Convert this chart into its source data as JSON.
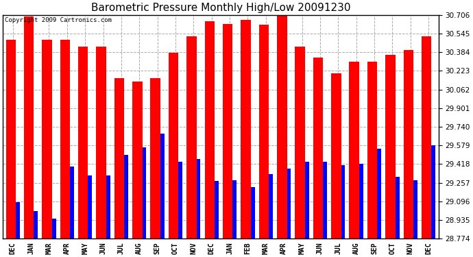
{
  "title": "Barometric Pressure Monthly High/Low 20091230",
  "copyright": "Copyright 2009 Cartronics.com",
  "months": [
    "DEC",
    "JAN",
    "MAR",
    "APR",
    "MAY",
    "JUN",
    "JUL",
    "AUG",
    "SEP",
    "OCT",
    "NOV",
    "DEC",
    "JAN",
    "FEB",
    "MAR",
    "APR",
    "MAY",
    "JUN",
    "JUL",
    "AUG",
    "SEP",
    "OCT",
    "NOV",
    "DEC"
  ],
  "highs": [
    30.49,
    30.69,
    30.49,
    30.49,
    30.43,
    30.43,
    30.16,
    30.13,
    30.16,
    30.38,
    30.52,
    30.65,
    30.63,
    30.66,
    30.62,
    30.72,
    30.43,
    30.34,
    30.2,
    30.3,
    30.3,
    30.36,
    30.4,
    30.52
  ],
  "lows": [
    29.09,
    29.01,
    28.95,
    29.4,
    29.32,
    29.32,
    29.5,
    29.56,
    29.68,
    29.44,
    29.46,
    29.27,
    29.28,
    29.22,
    29.33,
    29.38,
    29.44,
    29.44,
    29.41,
    29.42,
    29.55,
    29.31,
    29.28,
    29.58
  ],
  "bar_color_high": "#FF0000",
  "bar_color_low": "#0000FF",
  "background_color": "#FFFFFF",
  "plot_background": "#FFFFFF",
  "grid_color": "#AAAAAA",
  "ymin": 28.774,
  "ymax": 30.706,
  "yticks": [
    28.774,
    28.935,
    29.096,
    29.257,
    29.418,
    29.579,
    29.74,
    29.901,
    30.062,
    30.223,
    30.384,
    30.545,
    30.706
  ],
  "title_fontsize": 11,
  "copyright_fontsize": 6.5,
  "tick_fontsize": 7.5,
  "xtick_fontsize": 7
}
